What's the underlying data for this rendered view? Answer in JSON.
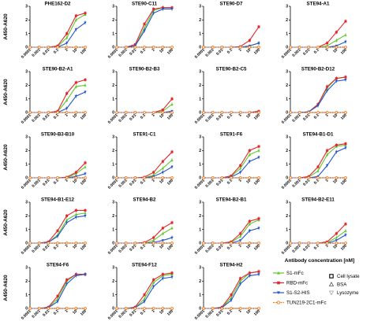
{
  "chart_data": {
    "type": "line",
    "layout": "small-multiples",
    "x_scale": "log",
    "x_ticks": [
      "0.0001",
      "0.001",
      "0.01",
      "0.1",
      "1",
      "10",
      "100"
    ],
    "x_tick_values": [
      0.0001,
      0.001,
      0.01,
      0.1,
      1,
      10,
      100
    ],
    "y_ticks": [
      "0",
      "1",
      "2",
      "3"
    ],
    "ylim": [
      0,
      3
    ],
    "ylabel": "A450-A620",
    "xlabel": "Antibody concentration [nM]",
    "x": [
      0.0001,
      0.001,
      0.01,
      0.1,
      1,
      10,
      100
    ],
    "series_styles": [
      {
        "name": "S1-mFc",
        "color": "#5ec92b",
        "marker": "triangle"
      },
      {
        "name": "RBD-mFc",
        "color": "#e3262b",
        "marker": "square"
      },
      {
        "name": "S1-S2-HIS",
        "color": "#2255cf",
        "marker": "triangle-down"
      },
      {
        "name": "TUN219-2C1-mFc",
        "color": "#f07a22",
        "marker": "circle-open"
      }
    ],
    "control_legend": [
      "Cell lysate",
      "BSA",
      "Lysozyme"
    ],
    "panels": [
      {
        "title": "PHE162-D2",
        "series": [
          {
            "name": "S1-mFc",
            "values": [
              0,
              0,
              0,
              0.05,
              0.7,
              2.0,
              2.4
            ]
          },
          {
            "name": "RBD-mFc",
            "values": [
              0,
              0,
              0,
              0.1,
              1.0,
              2.3,
              2.5
            ]
          },
          {
            "name": "S1-S2-HIS",
            "values": [
              0,
              0,
              0,
              0,
              0.3,
              1.3,
              1.8
            ]
          },
          {
            "name": "TUN219-2C1-mFc",
            "values": [
              0,
              0,
              0,
              0,
              0,
              0,
              0
            ]
          }
        ]
      },
      {
        "title": "STE90-C11",
        "series": [
          {
            "name": "S1-mFc",
            "values": [
              0,
              0,
              0.1,
              1.4,
              2.7,
              2.9,
              2.9
            ]
          },
          {
            "name": "RBD-mFc",
            "values": [
              0,
              0,
              0.2,
              1.7,
              2.8,
              2.9,
              2.9
            ]
          },
          {
            "name": "S1-S2-HIS",
            "values": [
              0,
              0,
              0.1,
              1.2,
              2.5,
              2.8,
              2.8
            ]
          },
          {
            "name": "TUN219-2C1-mFc",
            "values": [
              0,
              0,
              0,
              0,
              0,
              0,
              0
            ]
          }
        ]
      },
      {
        "title": "STE90-D7",
        "series": [
          {
            "name": "S1-mFc",
            "values": [
              0,
              0,
              0,
              0,
              0,
              0.1,
              0.3
            ]
          },
          {
            "name": "RBD-mFc",
            "values": [
              0,
              0,
              0,
              0,
              0.05,
              0.5,
              1.5
            ]
          },
          {
            "name": "S1-S2-HIS",
            "values": [
              0,
              0,
              0,
              0,
              0,
              0.1,
              0.3
            ]
          },
          {
            "name": "TUN219-2C1-mFc",
            "values": [
              0,
              0,
              0,
              0,
              0,
              0,
              0
            ]
          }
        ]
      },
      {
        "title": "STE94-A1",
        "series": [
          {
            "name": "S1-mFc",
            "values": [
              0,
              0,
              0,
              0,
              0.1,
              0.5,
              0.9
            ]
          },
          {
            "name": "RBD-mFc",
            "values": [
              0,
              0,
              0,
              0,
              0.3,
              1.1,
              1.9
            ]
          },
          {
            "name": "S1-S2-HIS",
            "values": [
              0,
              0,
              0,
              0,
              0,
              0.1,
              0.4
            ]
          },
          {
            "name": "TUN219-2C1-mFc",
            "values": [
              0,
              0,
              0,
              0,
              0,
              0,
              0
            ]
          }
        ]
      },
      {
        "title": "STE90-B2-A1",
        "series": [
          {
            "name": "S1-mFc",
            "values": [
              0,
              0,
              0,
              0.05,
              0.9,
              1.9,
              2.0
            ]
          },
          {
            "name": "RBD-mFc",
            "values": [
              0,
              0,
              0,
              0.1,
              1.4,
              2.2,
              2.4
            ]
          },
          {
            "name": "S1-S2-HIS",
            "values": [
              0,
              0,
              0,
              0,
              0.3,
              1.2,
              1.5
            ]
          },
          {
            "name": "TUN219-2C1-mFc",
            "values": [
              0,
              0,
              0,
              0,
              0,
              0,
              0
            ]
          }
        ]
      },
      {
        "title": "STE90-B2-B3",
        "series": [
          {
            "name": "S1-mFc",
            "values": [
              0,
              0,
              0,
              0,
              0,
              0.1,
              0.6
            ]
          },
          {
            "name": "RBD-mFc",
            "values": [
              0,
              0,
              0,
              0,
              0,
              0.2,
              1.0
            ]
          },
          {
            "name": "S1-S2-HIS",
            "values": [
              0,
              0,
              0,
              0,
              0,
              0,
              0.1
            ]
          },
          {
            "name": "TUN219-2C1-mFc",
            "values": [
              0,
              0,
              0,
              0,
              0,
              0,
              0
            ]
          }
        ]
      },
      {
        "title": "STE90-B2-C5",
        "series": [
          {
            "name": "S1-mFc",
            "values": [
              0,
              0,
              0,
              0,
              0,
              0,
              0.1
            ]
          },
          {
            "name": "RBD-mFc",
            "values": [
              0,
              0,
              0,
              0,
              0,
              0,
              0.1
            ]
          },
          {
            "name": "S1-S2-HIS",
            "values": [
              0,
              0,
              0,
              0,
              0,
              0,
              0
            ]
          },
          {
            "name": "TUN219-2C1-mFc",
            "values": [
              0,
              0,
              0,
              0,
              0,
              0,
              0
            ]
          }
        ]
      },
      {
        "title": "STE90-B2-D12",
        "series": [
          {
            "name": "S1-mFc",
            "values": [
              0,
              0,
              0.05,
              0.6,
              1.8,
              2.5,
              2.6
            ]
          },
          {
            "name": "RBD-mFc",
            "values": [
              0,
              0,
              0.05,
              0.6,
              1.9,
              2.5,
              2.6
            ]
          },
          {
            "name": "S1-S2-HIS",
            "values": [
              0,
              0,
              0.05,
              0.5,
              1.6,
              2.3,
              2.4
            ]
          },
          {
            "name": "TUN219-2C1-mFc",
            "values": [
              0,
              0,
              0,
              0,
              0,
              0,
              0
            ]
          }
        ]
      },
      {
        "title": "STE90-B3-B10",
        "series": [
          {
            "name": "S1-mFc",
            "values": [
              0,
              0,
              0,
              0,
              0,
              0.3,
              0.8
            ]
          },
          {
            "name": "RBD-mFc",
            "values": [
              0,
              0,
              0,
              0,
              0.05,
              0.4,
              1.1
            ]
          },
          {
            "name": "S1-S2-HIS",
            "values": [
              0,
              0,
              0,
              0,
              0,
              0.1,
              0.3
            ]
          },
          {
            "name": "TUN219-2C1-mFc",
            "values": [
              0,
              0,
              0,
              0,
              0,
              0,
              0
            ]
          }
        ]
      },
      {
        "title": "STE91-C1",
        "series": [
          {
            "name": "S1-mFc",
            "values": [
              0,
              0,
              0,
              0,
              0.2,
              0.7,
              1.3
            ]
          },
          {
            "name": "RBD-mFc",
            "values": [
              0,
              0,
              0,
              0.05,
              0.4,
              1.2,
              1.9
            ]
          },
          {
            "name": "S1-S2-HIS",
            "values": [
              0,
              0,
              0,
              0,
              0.1,
              0.4,
              0.8
            ]
          },
          {
            "name": "TUN219-2C1-mFc",
            "values": [
              0,
              0,
              0,
              0,
              0,
              0,
              0
            ]
          }
        ]
      },
      {
        "title": "STE91-F6",
        "series": [
          {
            "name": "S1-mFc",
            "values": [
              0,
              0,
              0,
              0.1,
              0.7,
              1.7,
              2.0
            ]
          },
          {
            "name": "RBD-mFc",
            "values": [
              0,
              0,
              0,
              0.15,
              0.9,
              2.0,
              2.3
            ]
          },
          {
            "name": "S1-S2-HIS",
            "values": [
              0,
              0,
              0,
              0.05,
              0.4,
              1.2,
              1.5
            ]
          },
          {
            "name": "TUN219-2C1-mFc",
            "values": [
              0,
              0,
              0,
              0,
              0,
              0,
              0
            ]
          }
        ]
      },
      {
        "title": "STE94-B1-D1",
        "series": [
          {
            "name": "S1-mFc",
            "values": [
              0,
              0,
              0.05,
              0.5,
              1.7,
              2.3,
              2.4
            ]
          },
          {
            "name": "RBD-mFc",
            "values": [
              0,
              0,
              0.1,
              0.8,
              2.0,
              2.4,
              2.5
            ]
          },
          {
            "name": "S1-S2-HIS",
            "values": [
              0,
              0,
              0,
              0.1,
              0.9,
              1.9,
              2.2
            ]
          },
          {
            "name": "TUN219-2C1-mFc",
            "values": [
              0,
              0,
              0,
              0,
              0,
              0,
              0
            ]
          }
        ]
      },
      {
        "title": "STE94-B1-E12",
        "series": [
          {
            "name": "S1-mFc",
            "values": [
              0,
              0,
              0.05,
              0.6,
              1.7,
              2.1,
              2.2
            ]
          },
          {
            "name": "RBD-mFc",
            "values": [
              0,
              0,
              0.1,
              0.9,
              2.0,
              2.4,
              2.4
            ]
          },
          {
            "name": "S1-S2-HIS",
            "values": [
              0,
              0,
              0.05,
              0.5,
              1.5,
              1.9,
              2.0
            ]
          },
          {
            "name": "TUN219-2C1-mFc",
            "values": [
              0,
              0,
              0,
              0,
              0,
              0,
              0
            ]
          }
        ]
      },
      {
        "title": "STE94-B2",
        "series": [
          {
            "name": "S1-mFc",
            "values": [
              0,
              0,
              0,
              0,
              0.2,
              0.7,
              1.1
            ]
          },
          {
            "name": "RBD-mFc",
            "values": [
              0,
              0,
              0,
              0.05,
              0.4,
              1.1,
              1.5
            ]
          },
          {
            "name": "S1-S2-HIS",
            "values": [
              0,
              0,
              0,
              0,
              0.05,
              0.2,
              0.4
            ]
          },
          {
            "name": "TUN219-2C1-mFc",
            "values": [
              0,
              0,
              0,
              0,
              0,
              0,
              0
            ]
          }
        ]
      },
      {
        "title": "STE94-B2-B1",
        "series": [
          {
            "name": "S1-mFc",
            "values": [
              0,
              0,
              0,
              0.05,
              0.5,
              1.4,
              1.7
            ]
          },
          {
            "name": "RBD-mFc",
            "values": [
              0,
              0,
              0,
              0.1,
              0.7,
              1.6,
              1.8
            ]
          },
          {
            "name": "S1-S2-HIS",
            "values": [
              0,
              0,
              0,
              0,
              0.2,
              0.9,
              1.1
            ]
          },
          {
            "name": "TUN219-2C1-mFc",
            "values": [
              0,
              0,
              0,
              0,
              0,
              0,
              0
            ]
          }
        ]
      },
      {
        "title": "STE94-B2-E11",
        "series": [
          {
            "name": "S1-mFc",
            "values": [
              0,
              0,
              0,
              0,
              0.05,
              0.4,
              0.9
            ]
          },
          {
            "name": "RBD-mFc",
            "values": [
              0,
              0,
              0,
              0,
              0.1,
              0.7,
              1.4
            ]
          },
          {
            "name": "S1-S2-HIS",
            "values": [
              0,
              0,
              0,
              0,
              0,
              0.2,
              0.6
            ]
          },
          {
            "name": "TUN219-2C1-mFc",
            "values": [
              0,
              0,
              0,
              0,
              0,
              0,
              0
            ]
          }
        ]
      },
      {
        "title": "STE94-F6",
        "series": [
          {
            "name": "S1-mFc",
            "values": [
              0,
              0,
              0.05,
              0.7,
              2.0,
              2.5,
              2.5
            ]
          },
          {
            "name": "RBD-mFc",
            "values": [
              0,
              0,
              0.1,
              0.9,
              2.1,
              2.5,
              2.5
            ]
          },
          {
            "name": "S1-S2-HIS",
            "values": [
              0,
              0,
              0.05,
              0.5,
              1.8,
              2.4,
              2.5
            ]
          },
          {
            "name": "TUN219-2C1-mFc",
            "values": [
              0,
              0,
              0,
              0,
              0,
              0,
              0
            ]
          }
        ]
      },
      {
        "title": "STE94-F12",
        "series": [
          {
            "name": "S1-mFc",
            "values": [
              0,
              0,
              0.05,
              0.7,
              1.9,
              2.4,
              2.5
            ]
          },
          {
            "name": "RBD-mFc",
            "values": [
              0,
              0,
              0.1,
              1.0,
              2.1,
              2.5,
              2.6
            ]
          },
          {
            "name": "S1-S2-HIS",
            "values": [
              0,
              0,
              0.05,
              0.5,
              1.6,
              2.2,
              2.3
            ]
          },
          {
            "name": "TUN219-2C1-mFc",
            "values": [
              0,
              0,
              0,
              0,
              0,
              0,
              0
            ]
          }
        ]
      },
      {
        "title": "STE94-H2",
        "series": [
          {
            "name": "S1-mFc",
            "values": [
              0,
              0,
              0.05,
              0.8,
              2.0,
              2.6,
              2.7
            ]
          },
          {
            "name": "RBD-mFc",
            "values": [
              0,
              0,
              0.1,
              1.0,
              2.2,
              2.6,
              2.7
            ]
          },
          {
            "name": "S1-S2-HIS",
            "values": [
              0,
              0,
              0.05,
              0.6,
              1.8,
              2.4,
              2.5
            ]
          },
          {
            "name": "TUN219-2C1-mFc",
            "values": [
              0,
              0,
              0,
              0,
              0,
              0,
              0
            ]
          }
        ]
      }
    ]
  }
}
